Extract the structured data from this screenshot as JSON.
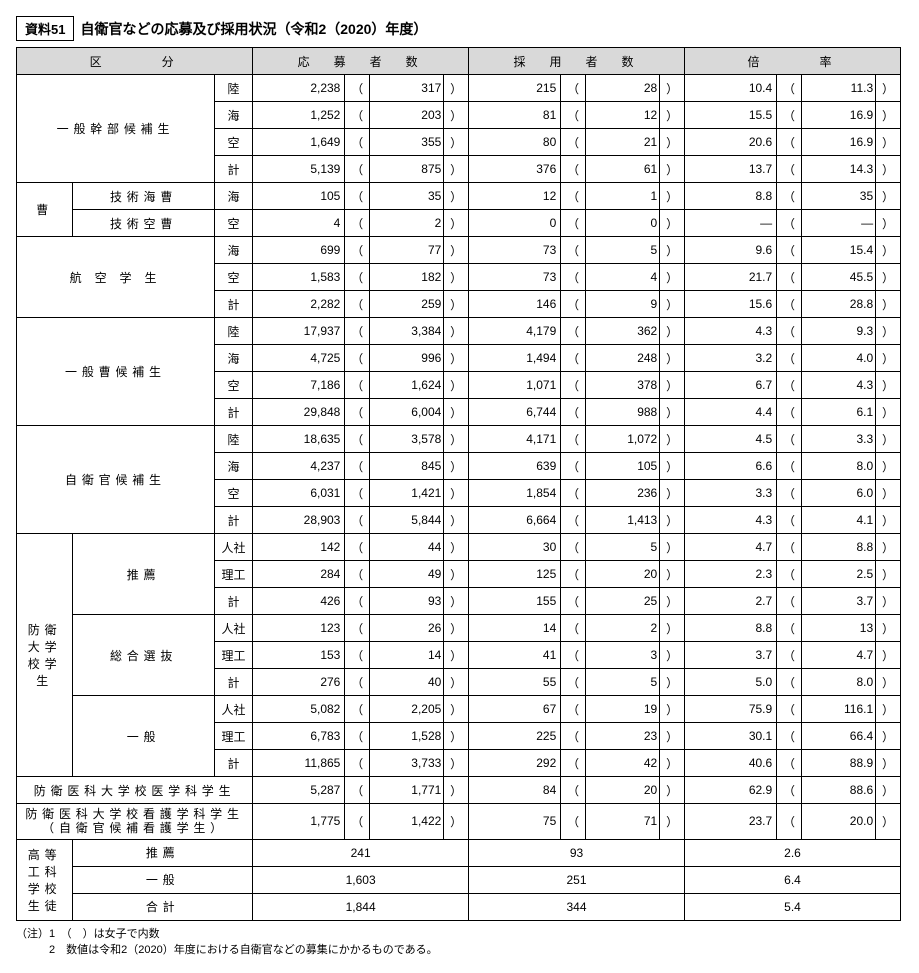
{
  "title_box": "資料51",
  "title": "自衛官などの応募及び採用状況（令和2（2020）年度）",
  "headers": {
    "cat": "区　　　分",
    "app": "応　募　者　数",
    "hire": "採　用　者　数",
    "rate": "倍　　　率"
  },
  "branches": {
    "riku": "陸",
    "umi": "海",
    "sora": "空",
    "kei": "計",
    "jinsha": "人社",
    "riko": "理工"
  },
  "cats": {
    "kanbu": "一般幹部候補生",
    "sou_label": "曹",
    "gijutsu_kai": "技術海曹",
    "gijutsu_ku": "技術空曹",
    "koku": "航 空 学 生",
    "sou_koho": "一般曹候補生",
    "jieikan": "自衛官候補生",
    "bouei": "防衛大学校学生",
    "suisen": "推薦",
    "sougou": "総合選抜",
    "ippan": "一般",
    "igaku": "防衛医科大学校医学科学生",
    "kango": "防衛医科大学校看護学科学生",
    "kango2": "（自衛官候補看護学生）",
    "koutou": "高等工科学校生徒",
    "k_suisen": "推薦",
    "k_ippan": "一般",
    "k_goukei": "合計"
  },
  "rows": [
    {
      "a": "2,238",
      "as": "317",
      "h": "215",
      "hs": "28",
      "r": "10.4",
      "rs": "11.3"
    },
    {
      "a": "1,252",
      "as": "203",
      "h": "81",
      "hs": "12",
      "r": "15.5",
      "rs": "16.9"
    },
    {
      "a": "1,649",
      "as": "355",
      "h": "80",
      "hs": "21",
      "r": "20.6",
      "rs": "16.9"
    },
    {
      "a": "5,139",
      "as": "875",
      "h": "376",
      "hs": "61",
      "r": "13.7",
      "rs": "14.3"
    },
    {
      "a": "105",
      "as": "35",
      "h": "12",
      "hs": "1",
      "r": "8.8",
      "rs": "35"
    },
    {
      "a": "4",
      "as": "2",
      "h": "0",
      "hs": "0",
      "r": "—",
      "rs": "—"
    },
    {
      "a": "699",
      "as": "77",
      "h": "73",
      "hs": "5",
      "r": "9.6",
      "rs": "15.4"
    },
    {
      "a": "1,583",
      "as": "182",
      "h": "73",
      "hs": "4",
      "r": "21.7",
      "rs": "45.5"
    },
    {
      "a": "2,282",
      "as": "259",
      "h": "146",
      "hs": "9",
      "r": "15.6",
      "rs": "28.8"
    },
    {
      "a": "17,937",
      "as": "3,384",
      "h": "4,179",
      "hs": "362",
      "r": "4.3",
      "rs": "9.3"
    },
    {
      "a": "4,725",
      "as": "996",
      "h": "1,494",
      "hs": "248",
      "r": "3.2",
      "rs": "4.0"
    },
    {
      "a": "7,186",
      "as": "1,624",
      "h": "1,071",
      "hs": "378",
      "r": "6.7",
      "rs": "4.3"
    },
    {
      "a": "29,848",
      "as": "6,004",
      "h": "6,744",
      "hs": "988",
      "r": "4.4",
      "rs": "6.1"
    },
    {
      "a": "18,635",
      "as": "3,578",
      "h": "4,171",
      "hs": "1,072",
      "r": "4.5",
      "rs": "3.3"
    },
    {
      "a": "4,237",
      "as": "845",
      "h": "639",
      "hs": "105",
      "r": "6.6",
      "rs": "8.0"
    },
    {
      "a": "6,031",
      "as": "1,421",
      "h": "1,854",
      "hs": "236",
      "r": "3.3",
      "rs": "6.0"
    },
    {
      "a": "28,903",
      "as": "5,844",
      "h": "6,664",
      "hs": "1,413",
      "r": "4.3",
      "rs": "4.1"
    },
    {
      "a": "142",
      "as": "44",
      "h": "30",
      "hs": "5",
      "r": "4.7",
      "rs": "8.8"
    },
    {
      "a": "284",
      "as": "49",
      "h": "125",
      "hs": "20",
      "r": "2.3",
      "rs": "2.5"
    },
    {
      "a": "426",
      "as": "93",
      "h": "155",
      "hs": "25",
      "r": "2.7",
      "rs": "3.7"
    },
    {
      "a": "123",
      "as": "26",
      "h": "14",
      "hs": "2",
      "r": "8.8",
      "rs": "13"
    },
    {
      "a": "153",
      "as": "14",
      "h": "41",
      "hs": "3",
      "r": "3.7",
      "rs": "4.7"
    },
    {
      "a": "276",
      "as": "40",
      "h": "55",
      "hs": "5",
      "r": "5.0",
      "rs": "8.0"
    },
    {
      "a": "5,082",
      "as": "2,205",
      "h": "67",
      "hs": "19",
      "r": "75.9",
      "rs": "116.1"
    },
    {
      "a": "6,783",
      "as": "1,528",
      "h": "225",
      "hs": "23",
      "r": "30.1",
      "rs": "66.4"
    },
    {
      "a": "11,865",
      "as": "3,733",
      "h": "292",
      "hs": "42",
      "r": "40.6",
      "rs": "88.9"
    },
    {
      "a": "5,287",
      "as": "1,771",
      "h": "84",
      "hs": "20",
      "r": "62.9",
      "rs": "88.6"
    },
    {
      "a": "1,775",
      "as": "1,422",
      "h": "75",
      "hs": "71",
      "r": "23.7",
      "rs": "20.0"
    },
    {
      "a": "241",
      "h": "93",
      "r": "2.6",
      "plain": true
    },
    {
      "a": "1,603",
      "h": "251",
      "r": "6.4",
      "plain": true
    },
    {
      "a": "1,844",
      "h": "344",
      "r": "5.4",
      "plain": true
    }
  ],
  "notes": [
    "（注）1　（　）は女子で内数",
    "　　　2　数値は令和2（2020）年度における自衛官などの募集にかかるものである。"
  ]
}
